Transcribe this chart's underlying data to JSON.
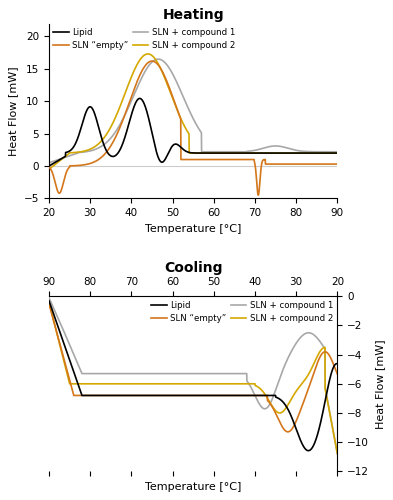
{
  "heating_title": "Heating",
  "cooling_title": "Cooling",
  "xlabel": "Temperature [°C]",
  "ylabel_heating": "Heat Flow [mW]",
  "ylabel_cooling": "Heat Flow [mW]",
  "colors": {
    "lipid": "#000000",
    "sln_empty": "#D4761A",
    "sln_c1": "#A8A8A8",
    "sln_c2": "#D4A800"
  },
  "legend_labels": [
    "Lipid",
    "SLN \"empty\"",
    "SLN + compound 1",
    "SLN + compound 2"
  ]
}
